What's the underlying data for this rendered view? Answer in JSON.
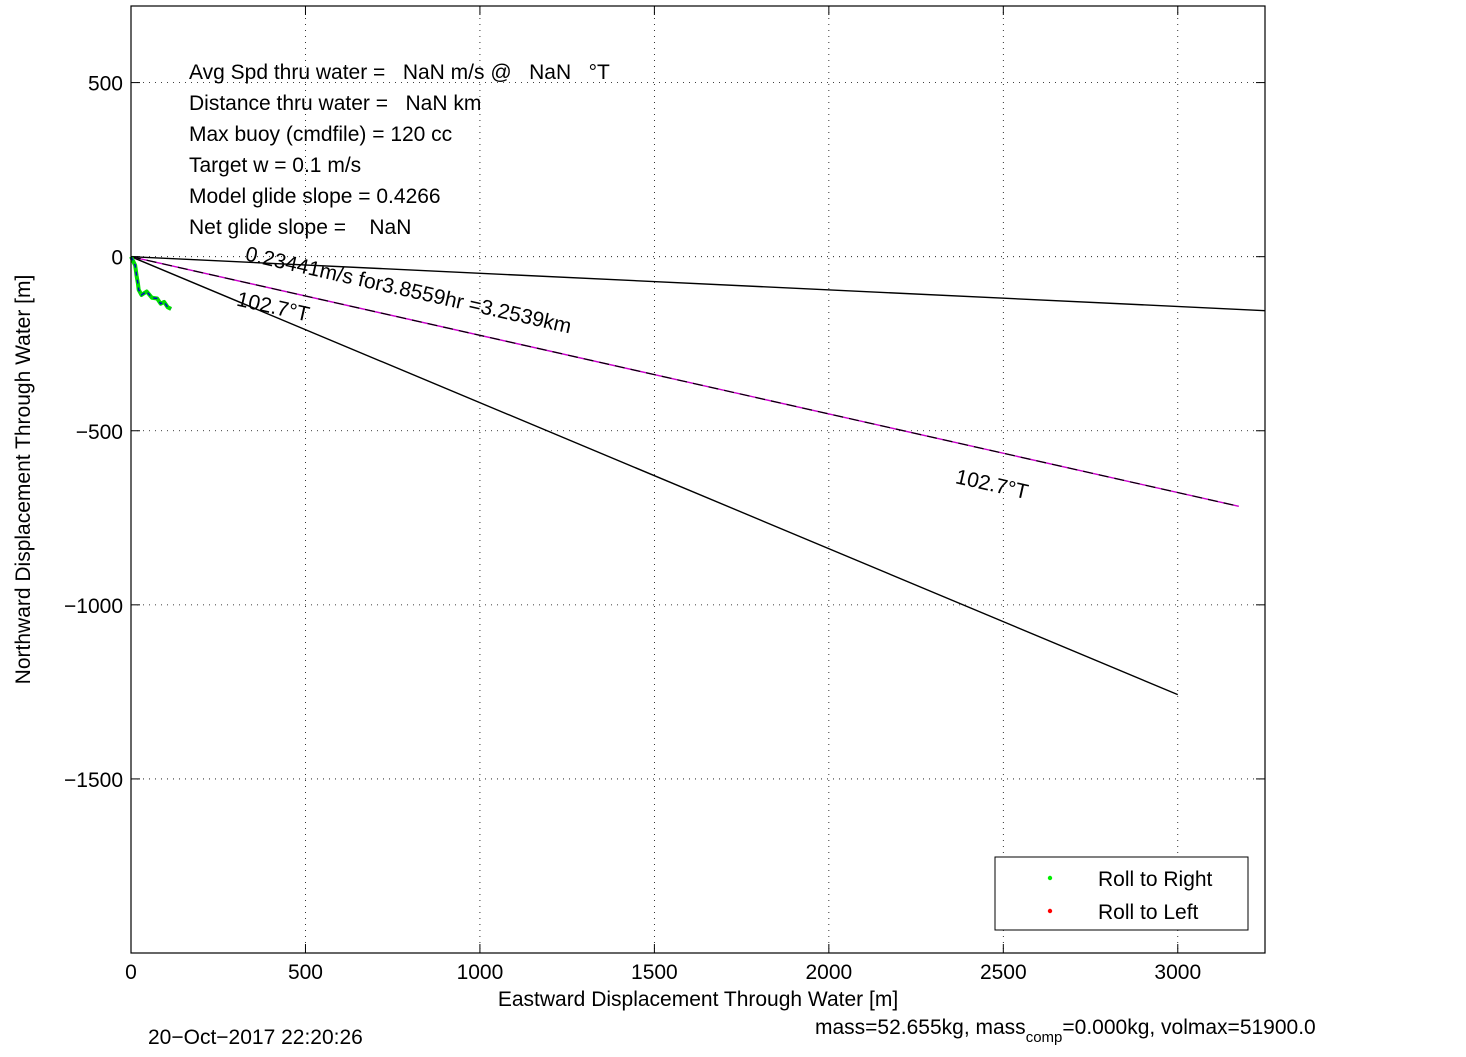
{
  "chart_data": {
    "type": "line",
    "xlabel": "Eastward Displacement Through Water [m]",
    "ylabel": "Northward Displacement Through Water [m]",
    "xlim": [
      0,
      3250
    ],
    "ylim": [
      -2000,
      720
    ],
    "xticks": [
      0,
      500,
      1000,
      1500,
      2000,
      2500,
      3000
    ],
    "yticks": [
      500,
      0,
      -500,
      -1000,
      -1500
    ],
    "grid": true,
    "info_lines": [
      "Avg Spd thru water =   NaN m/s @   NaN   °T",
      "Distance thru water =   NaN km",
      "Max buoy (cmdfile) = 120 cc",
      "Target w = 0.1 m/s",
      "Model glide slope = 0.4266",
      "Net glide slope =    NaN"
    ],
    "reference_lines": [
      {
        "x": [
          0,
          3250
        ],
        "y": [
          0,
          -155
        ],
        "color": "#000000"
      },
      {
        "x": [
          0,
          3000
        ],
        "y": [
          0,
          -1258
        ],
        "color": "#000000"
      },
      {
        "x": [
          0,
          3175
        ],
        "y": [
          0,
          -717
        ],
        "color": "#cc00cc",
        "dashed_overlay": true
      }
    ],
    "track": {
      "x": [
        0,
        12,
        16,
        20,
        22,
        30,
        45,
        60,
        75,
        85,
        95,
        105,
        115
      ],
      "y": [
        0,
        -25,
        -55,
        -78,
        -95,
        -110,
        -100,
        -118,
        -120,
        -135,
        -130,
        -145,
        -150
      ]
    },
    "annotations": [
      {
        "text": "0.23441m/s for3.8559hr =3.2539km",
        "x": 325,
        "y": -10,
        "angle_deg": 12.7
      },
      {
        "text": "102.7°T",
        "x": 300,
        "y": -140,
        "angle_deg": 12.7
      },
      {
        "text": "102.7°T",
        "x": 2360,
        "y": -650,
        "angle_deg": 12.7
      }
    ],
    "series": [
      {
        "name": "Roll to Right",
        "color": "#00ee00"
      },
      {
        "name": "Roll to Left",
        "color": "#ff0000"
      }
    ],
    "legend_position": "bottom-right"
  },
  "footer": {
    "date": "20−Oct−2017 22:20:26",
    "mass_prefix": "mass=52.655kg, mass",
    "mass_sub": "comp",
    "mass_suffix": "=0.000kg, volmax=51900.0"
  }
}
